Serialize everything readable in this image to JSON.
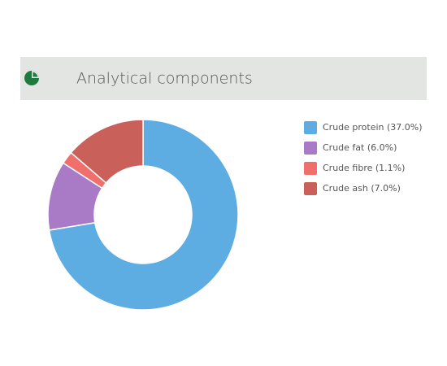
{
  "chart_data": {
    "type": "donut",
    "title": "Analytical components",
    "categories": [
      "Crude protein (37.0%)",
      "Crude fat (6.0%)",
      "Crude fibre (1.1%)",
      "Crude ash (7.0%)"
    ],
    "values": [
      37.0,
      6.0,
      1.1,
      7.0
    ],
    "colors": [
      "#5dade2",
      "#a97bc7",
      "#ef6f6c",
      "#c9605a"
    ]
  }
}
